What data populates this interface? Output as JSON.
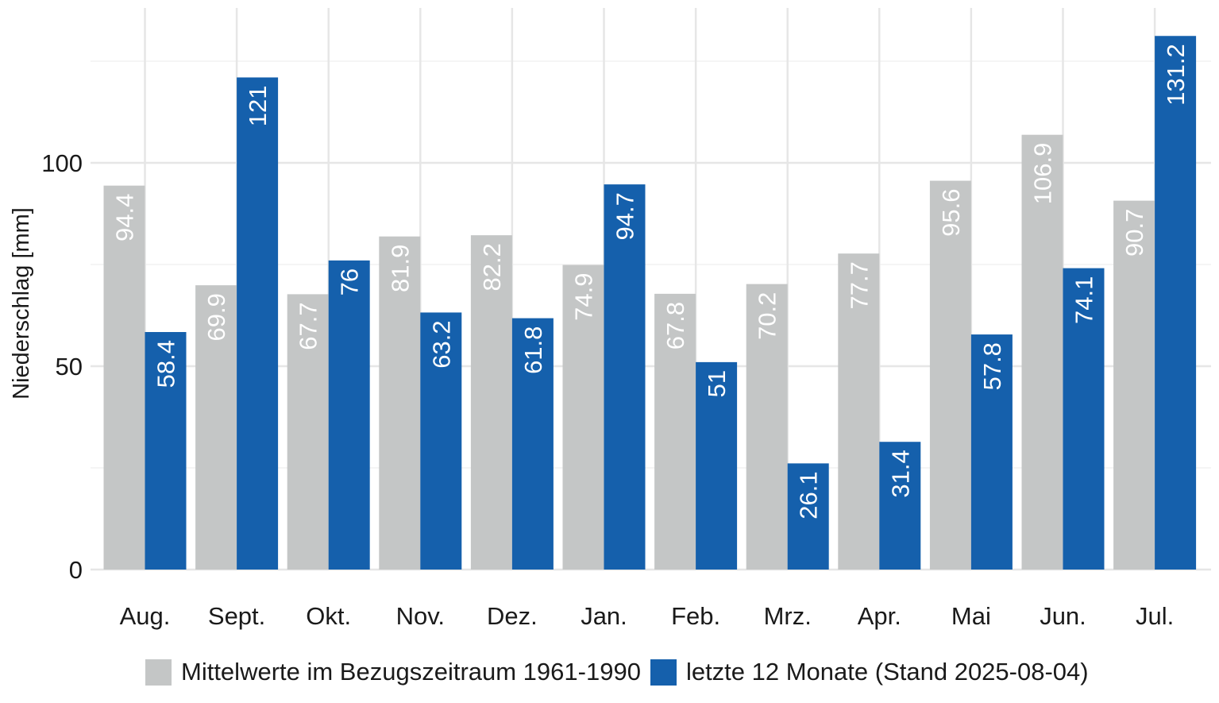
{
  "chart_data": {
    "type": "bar",
    "categories": [
      "Aug.",
      "Sept.",
      "Okt.",
      "Nov.",
      "Dez.",
      "Jan.",
      "Feb.",
      "Mrz.",
      "Apr.",
      "Mai",
      "Jun.",
      "Jul."
    ],
    "series": [
      {
        "name": "Mittelwerte im Bezugszeitraum 1961-1990",
        "color": "#c4c6c6",
        "values": [
          94.4,
          69.9,
          67.7,
          81.9,
          82.2,
          74.9,
          67.8,
          70.2,
          77.7,
          95.6,
          106.9,
          90.7
        ],
        "labels": [
          "94.4",
          "69.9",
          "67.7",
          "81.9",
          "82.2",
          "74.9",
          "67.8",
          "70.2",
          "77.7",
          "95.6",
          "106.9",
          "90.7"
        ]
      },
      {
        "name": "letzte 12 Monate (Stand 2025-08-04)",
        "color": "#1560ac",
        "values": [
          58.4,
          121,
          76,
          63.2,
          61.8,
          94.7,
          51,
          26.1,
          31.4,
          57.8,
          74.1,
          131.2
        ],
        "labels": [
          "58.4",
          "121",
          "76",
          "63.2",
          "61.8",
          "94.7",
          "51",
          "26.1",
          "31.4",
          "57.8",
          "74.1",
          "131.2"
        ]
      }
    ],
    "title": "",
    "xlabel": "",
    "ylabel": "Niederschlag [mm]",
    "ylim": [
      0,
      133
    ],
    "yticks": [
      0,
      50,
      100
    ],
    "ytick_labels": [
      "0",
      "50",
      "100"
    ],
    "grid": true,
    "legend_position": "bottom"
  }
}
